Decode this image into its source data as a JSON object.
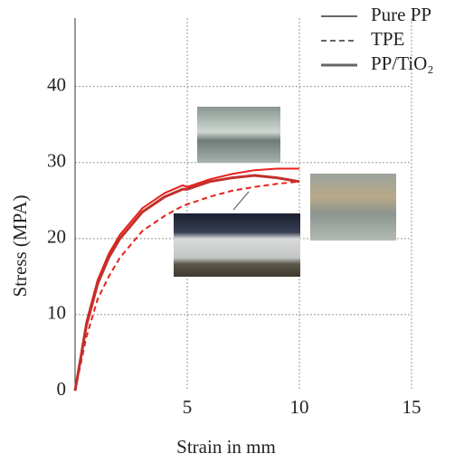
{
  "chart_data": {
    "type": "line",
    "x_label": "Strain in mm",
    "y_label": "Stress (MPA)",
    "x": [
      0,
      0.5,
      1,
      1.5,
      2,
      3,
      4,
      4.8,
      5,
      6,
      7,
      8,
      9,
      10
    ],
    "series": [
      {
        "name": "Pure PP",
        "color": "#e8201c",
        "dash": "solid",
        "width": 2,
        "values": [
          0,
          9,
          14.5,
          18,
          20.5,
          24,
          26,
          27,
          26.8,
          27.8,
          28.5,
          29,
          29.2,
          29.2
        ]
      },
      {
        "name": "TPE",
        "color": "#e8201c",
        "dash": "dashed",
        "width": 2,
        "values": [
          0,
          7,
          12,
          15,
          17.5,
          21,
          23,
          24.3,
          24.5,
          25.5,
          26.3,
          26.8,
          27.2,
          27.5
        ]
      },
      {
        "name": "PP/TiO₂",
        "color": "#c0302c",
        "dash": "solid",
        "width": 3,
        "values": [
          0,
          8.5,
          14,
          17.5,
          20,
          23.5,
          25.5,
          26.5,
          26.5,
          27.5,
          28,
          28.3,
          28,
          27.5
        ]
      }
    ],
    "legend_symbol_color": "#666",
    "xlim": [
      0,
      15
    ],
    "ylim": [
      0,
      49
    ],
    "xticks": [
      5,
      10,
      15
    ],
    "yticks": [
      0,
      10,
      20,
      30,
      40
    ],
    "grid": true,
    "legend": "upper right"
  }
}
